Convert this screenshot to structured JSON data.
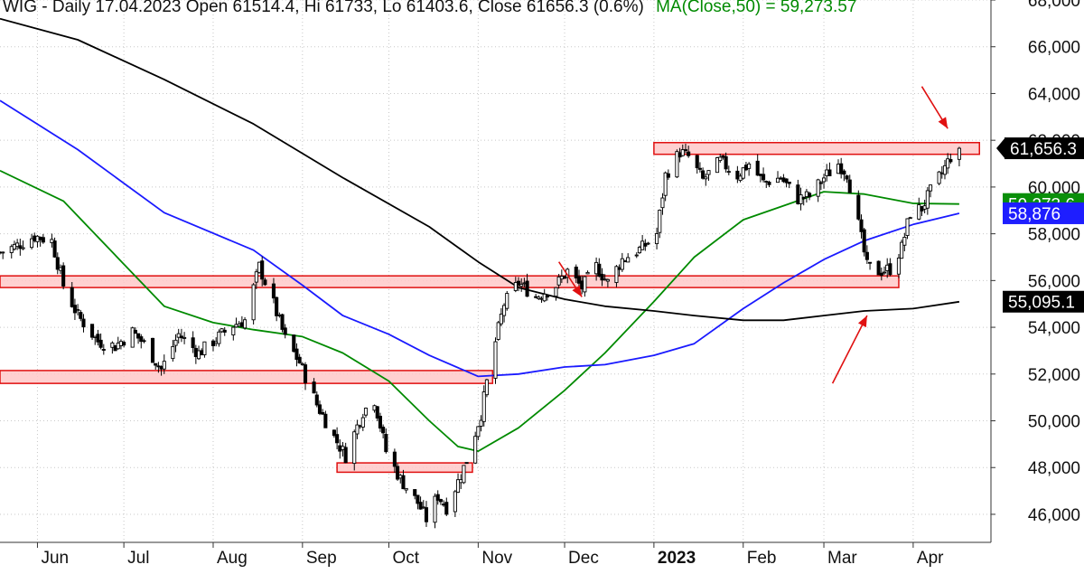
{
  "header": {
    "title_prefix": "WIG - Daily 17.04.2023 Open 61514.4, Hi 61733, Lo 61403.6, Close 61656.3 (0.6%)",
    "ma_label": "MA(Close,50) = 59,273.57"
  },
  "colors": {
    "background": "#ffffff",
    "grid": "#c8c8c8",
    "axis": "#333333",
    "candle": "#000000",
    "ma50": "#008a00",
    "ma100": "#1a1aff",
    "ma200": "#000000",
    "zone_fill": "#ffc8c8",
    "zone_stroke": "#e01010",
    "arrow": "#e01010",
    "badge_last": "#000000",
    "badge_ma50": "#0a8f0a",
    "badge_ma100": "#1e1eff",
    "badge_ma200": "#000000"
  },
  "chart_data": {
    "type": "candlestick",
    "instrument": "WIG",
    "interval": "Daily",
    "ylim": [
      44800,
      68000
    ],
    "y_ticks": [
      "46,000",
      "48,000",
      "50,000",
      "52,000",
      "54,000",
      "56,000",
      "58,000",
      "60,000",
      "62,000",
      "64,000",
      "66,000",
      "68,000"
    ],
    "x_range": [
      "2022-05-19",
      "2023-04-28"
    ],
    "month_labels": [
      {
        "label": "Jun",
        "date": "2022-06-01"
      },
      {
        "label": "Jul",
        "date": "2022-07-01"
      },
      {
        "label": "Aug",
        "date": "2022-08-01"
      },
      {
        "label": "Sep",
        "date": "2022-09-01"
      },
      {
        "label": "Oct",
        "date": "2022-10-01"
      },
      {
        "label": "Nov",
        "date": "2022-11-01"
      },
      {
        "label": "Dec",
        "date": "2022-12-01"
      },
      {
        "label": "2023",
        "date": "2023-01-01",
        "bold": true
      },
      {
        "label": "Feb",
        "date": "2023-02-01"
      },
      {
        "label": "Mar",
        "date": "2023-03-01"
      },
      {
        "label": "Apr",
        "date": "2023-04-01"
      }
    ],
    "close_anchors": [
      [
        "2022-05-19",
        57200
      ],
      [
        "2022-05-25",
        57500
      ],
      [
        "2022-05-31",
        57900
      ],
      [
        "2022-06-06",
        57700
      ],
      [
        "2022-06-10",
        55800
      ],
      [
        "2022-06-15",
        54500
      ],
      [
        "2022-06-22",
        53400
      ],
      [
        "2022-06-28",
        53200
      ],
      [
        "2022-07-04",
        53800
      ],
      [
        "2022-07-08",
        53300
      ],
      [
        "2022-07-14",
        52200
      ],
      [
        "2022-07-20",
        53700
      ],
      [
        "2022-07-27",
        52900
      ],
      [
        "2022-08-02",
        53500
      ],
      [
        "2022-08-08",
        54100
      ],
      [
        "2022-08-12",
        54300
      ],
      [
        "2022-08-17",
        56600
      ],
      [
        "2022-08-22",
        55000
      ],
      [
        "2022-08-26",
        53500
      ],
      [
        "2022-08-31",
        52500
      ],
      [
        "2022-09-06",
        50700
      ],
      [
        "2022-09-12",
        49300
      ],
      [
        "2022-09-16",
        48500
      ],
      [
        "2022-09-22",
        50400
      ],
      [
        "2022-09-26",
        50900
      ],
      [
        "2022-09-30",
        48700
      ],
      [
        "2022-10-05",
        47500
      ],
      [
        "2022-10-11",
        46500
      ],
      [
        "2022-10-14",
        45800
      ],
      [
        "2022-10-18",
        46800
      ],
      [
        "2022-10-21",
        46300
      ],
      [
        "2022-10-25",
        47400
      ],
      [
        "2022-10-28",
        48300
      ],
      [
        "2022-11-02",
        50300
      ],
      [
        "2022-11-05",
        52300
      ],
      [
        "2022-11-10",
        55000
      ],
      [
        "2022-11-15",
        55900
      ],
      [
        "2022-11-21",
        55300
      ],
      [
        "2022-11-28",
        55800
      ],
      [
        "2022-12-02",
        56400
      ],
      [
        "2022-12-07",
        55700
      ],
      [
        "2022-12-12",
        56600
      ],
      [
        "2022-12-16",
        55900
      ],
      [
        "2022-12-21",
        56900
      ],
      [
        "2022-12-28",
        57400
      ],
      [
        "2023-01-02",
        58000
      ],
      [
        "2023-01-05",
        60500
      ],
      [
        "2023-01-10",
        61500
      ],
      [
        "2023-01-13",
        61300
      ],
      [
        "2023-01-18",
        60300
      ],
      [
        "2023-01-24",
        61100
      ],
      [
        "2023-01-30",
        60500
      ],
      [
        "2023-02-03",
        61000
      ],
      [
        "2023-02-08",
        60200
      ],
      [
        "2023-02-14",
        60400
      ],
      [
        "2023-02-20",
        59500
      ],
      [
        "2023-02-24",
        59600
      ],
      [
        "2023-03-01",
        60400
      ],
      [
        "2023-03-06",
        61000
      ],
      [
        "2023-03-09",
        60600
      ],
      [
        "2023-03-13",
        58400
      ],
      [
        "2023-03-16",
        56600
      ],
      [
        "2023-03-20",
        56400
      ],
      [
        "2023-03-24",
        56500
      ],
      [
        "2023-03-28",
        57400
      ],
      [
        "2023-03-31",
        58900
      ],
      [
        "2023-04-04",
        59100
      ],
      [
        "2023-04-07",
        59800
      ],
      [
        "2023-04-11",
        60600
      ],
      [
        "2023-04-14",
        61300
      ],
      [
        "2023-04-17",
        61656
      ]
    ],
    "ma_series": [
      {
        "name": "MA(Close,50)",
        "color": "#008a00",
        "points": [
          [
            "2022-05-19",
            60700
          ],
          [
            "2022-06-10",
            59400
          ],
          [
            "2022-07-01",
            56700
          ],
          [
            "2022-07-15",
            54900
          ],
          [
            "2022-08-01",
            54200
          ],
          [
            "2022-08-15",
            53900
          ],
          [
            "2022-09-01",
            53600
          ],
          [
            "2022-09-15",
            52900
          ],
          [
            "2022-10-01",
            51700
          ],
          [
            "2022-10-15",
            50000
          ],
          [
            "2022-10-25",
            48900
          ],
          [
            "2022-11-01",
            48700
          ],
          [
            "2022-11-15",
            49700
          ],
          [
            "2022-12-01",
            51300
          ],
          [
            "2022-12-15",
            52900
          ],
          [
            "2023-01-01",
            55100
          ],
          [
            "2023-01-15",
            57000
          ],
          [
            "2023-02-01",
            58600
          ],
          [
            "2023-02-15",
            59200
          ],
          [
            "2023-03-01",
            59800
          ],
          [
            "2023-03-15",
            59700
          ],
          [
            "2023-04-01",
            59300
          ],
          [
            "2023-04-17",
            59274
          ]
        ]
      },
      {
        "name": "MA(Close,100)",
        "color": "#1a1aff",
        "points": [
          [
            "2022-05-19",
            63700
          ],
          [
            "2022-06-15",
            61600
          ],
          [
            "2022-07-15",
            58900
          ],
          [
            "2022-08-15",
            57300
          ],
          [
            "2022-09-01",
            55800
          ],
          [
            "2022-09-15",
            54500
          ],
          [
            "2022-10-01",
            53700
          ],
          [
            "2022-10-15",
            52800
          ],
          [
            "2022-11-01",
            51900
          ],
          [
            "2022-11-15",
            52000
          ],
          [
            "2022-12-01",
            52300
          ],
          [
            "2022-12-15",
            52400
          ],
          [
            "2023-01-01",
            52800
          ],
          [
            "2023-01-15",
            53300
          ],
          [
            "2023-02-01",
            54800
          ],
          [
            "2023-02-15",
            55900
          ],
          [
            "2023-03-01",
            56900
          ],
          [
            "2023-03-15",
            57700
          ],
          [
            "2023-04-01",
            58400
          ],
          [
            "2023-04-17",
            58876
          ]
        ]
      },
      {
        "name": "MA(Close,200)",
        "color": "#000000",
        "points": [
          [
            "2022-05-19",
            67200
          ],
          [
            "2022-06-15",
            66300
          ],
          [
            "2022-07-15",
            64600
          ],
          [
            "2022-08-15",
            62700
          ],
          [
            "2022-09-15",
            60400
          ],
          [
            "2022-10-15",
            58300
          ],
          [
            "2022-11-01",
            56800
          ],
          [
            "2022-11-15",
            55700
          ],
          [
            "2022-12-01",
            55200
          ],
          [
            "2022-12-15",
            54900
          ],
          [
            "2023-01-01",
            54700
          ],
          [
            "2023-01-15",
            54500
          ],
          [
            "2023-02-01",
            54300
          ],
          [
            "2023-02-15",
            54300
          ],
          [
            "2023-03-01",
            54500
          ],
          [
            "2023-03-15",
            54700
          ],
          [
            "2023-04-01",
            54800
          ],
          [
            "2023-04-17",
            55095
          ]
        ]
      }
    ],
    "zones": [
      {
        "name": "resistance-62000",
        "from": "2023-01-01",
        "to": "2023-04-24",
        "y_low": 61400,
        "y_high": 61900
      },
      {
        "name": "support-56000",
        "from": "2022-05-19",
        "to": "2023-03-27",
        "y_low": 55700,
        "y_high": 56200
      },
      {
        "name": "level-52000",
        "from": "2022-05-19",
        "to": "2022-11-06",
        "y_low": 51600,
        "y_high": 52150
      },
      {
        "name": "level-48000",
        "from": "2022-09-13",
        "to": "2022-10-30",
        "y_low": 47800,
        "y_high": 48200
      }
    ],
    "arrows": [
      {
        "name": "arrow-top-right",
        "from": [
          "2023-04-04",
          64300
        ],
        "to": [
          "2023-04-13",
          62500
        ]
      },
      {
        "name": "arrow-december",
        "from": [
          "2022-11-29",
          56800
        ],
        "to": [
          "2022-12-07",
          55300
        ]
      },
      {
        "name": "arrow-march-low",
        "from": [
          "2023-03-04",
          51600
        ],
        "to": [
          "2023-03-16",
          54500
        ]
      }
    ],
    "badges": [
      {
        "name": "last-price-badge",
        "label": "61,656.3",
        "value": 61656.3,
        "color": "#000000",
        "pointer": true
      },
      {
        "name": "ma50-badge",
        "label": "59,273.6",
        "value": 59273.6,
        "color": "#0a8f0a",
        "pointer": false
      },
      {
        "name": "ma100-badge",
        "label": "58,876",
        "value": 58876,
        "color": "#1e1eff",
        "pointer": false
      },
      {
        "name": "ma200-badge",
        "label": "55,095.1",
        "value": 55095.1,
        "color": "#000000",
        "pointer": false
      }
    ]
  }
}
